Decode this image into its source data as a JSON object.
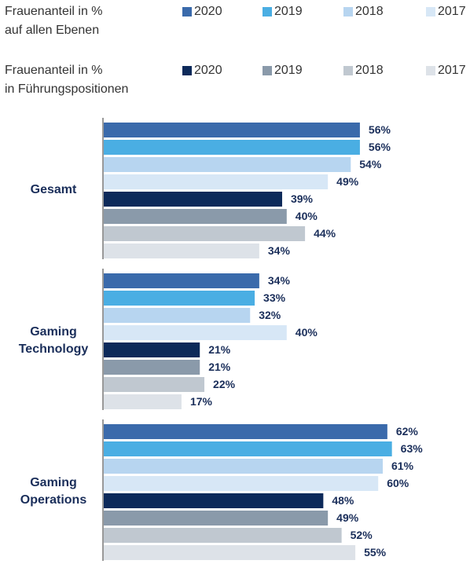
{
  "chart_data": {
    "type": "bar",
    "orientation": "horizontal",
    "legend_titles": [
      [
        "Frauenanteil in %",
        "auf allen Ebenen"
      ],
      [
        "Frauenanteil in %",
        "in Führungspositionen"
      ]
    ],
    "categories": [
      "Gesamt",
      "Gaming Technology",
      "Gaming Operations"
    ],
    "series": [
      {
        "name": "2020",
        "color": "#3a6aab",
        "values": [
          56,
          34,
          62
        ],
        "value_labels": [
          "56%",
          "34%",
          "62%"
        ]
      },
      {
        "name": "2019",
        "color": "#4aaee3",
        "values": [
          56,
          33,
          63
        ],
        "value_labels": [
          "56%",
          "33%",
          "63%"
        ]
      },
      {
        "name": "2018",
        "color": "#b7d5f0",
        "values": [
          54,
          32,
          61
        ],
        "value_labels": [
          "54%",
          "32%",
          "61%"
        ]
      },
      {
        "name": "2017",
        "color": "#d7e7f6",
        "values": [
          49,
          40,
          60
        ],
        "value_labels": [
          "49%",
          "40%",
          "60%"
        ]
      },
      {
        "name": "2020",
        "color": "#0d2a5a",
        "values": [
          39,
          21,
          48
        ],
        "value_labels": [
          "39%",
          "21%",
          "48%"
        ]
      },
      {
        "name": "2019",
        "color": "#8a9aaa",
        "values": [
          40,
          21,
          49
        ],
        "value_labels": [
          "40%",
          "21%",
          "49%"
        ]
      },
      {
        "name": "2018",
        "color": "#c0c8d0",
        "values": [
          44,
          22,
          52
        ],
        "value_labels": [
          "44%",
          "22%",
          "52%"
        ]
      },
      {
        "name": "2017",
        "color": "#dde2e8",
        "values": [
          34,
          17,
          55
        ],
        "value_labels": [
          "34%",
          "17%",
          "55%"
        ]
      }
    ]
  }
}
